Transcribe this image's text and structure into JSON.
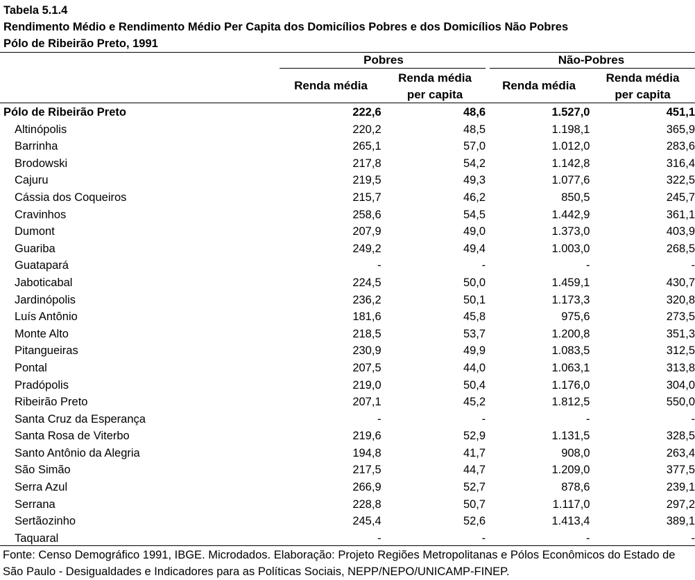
{
  "title": {
    "line1": "Tabela 5.1.4",
    "line2": "Rendimento Médio e Rendimento Médio Per Capita dos Domicílios Pobres e dos Domicílios Não Pobres",
    "line3": "Pólo de Ribeirão Preto, 1991"
  },
  "groups": {
    "pobres": "Pobres",
    "nao_pobres": "Não-Pobres"
  },
  "subheaders": {
    "renda_media": "Renda média",
    "per_capita_l1": "Renda média",
    "per_capita_l2": "per capita"
  },
  "rows": [
    {
      "name": "Pólo de Ribeirão Preto",
      "p_rm": "222,6",
      "p_pc": "48,6",
      "np_rm": "1.527,0",
      "np_pc": "451,1"
    },
    {
      "name": "Altinópolis",
      "p_rm": "220,2",
      "p_pc": "48,5",
      "np_rm": "1.198,1",
      "np_pc": "365,9"
    },
    {
      "name": "Barrinha",
      "p_rm": "265,1",
      "p_pc": "57,0",
      "np_rm": "1.012,0",
      "np_pc": "283,6"
    },
    {
      "name": "Brodowski",
      "p_rm": "217,8",
      "p_pc": "54,2",
      "np_rm": "1.142,8",
      "np_pc": "316,4"
    },
    {
      "name": "Cajuru",
      "p_rm": "219,5",
      "p_pc": "49,3",
      "np_rm": "1.077,6",
      "np_pc": "322,5"
    },
    {
      "name": "Cássia dos Coqueiros",
      "p_rm": "215,7",
      "p_pc": "46,2",
      "np_rm": "850,5",
      "np_pc": "245,7"
    },
    {
      "name": "Cravinhos",
      "p_rm": "258,6",
      "p_pc": "54,5",
      "np_rm": "1.442,9",
      "np_pc": "361,1"
    },
    {
      "name": "Dumont",
      "p_rm": "207,9",
      "p_pc": "49,0",
      "np_rm": "1.373,0",
      "np_pc": "403,9"
    },
    {
      "name": "Guariba",
      "p_rm": "249,2",
      "p_pc": "49,4",
      "np_rm": "1.003,0",
      "np_pc": "268,5"
    },
    {
      "name": "Guatapará",
      "p_rm": "-",
      "p_pc": "-",
      "np_rm": "-",
      "np_pc": "-"
    },
    {
      "name": "Jaboticabal",
      "p_rm": "224,5",
      "p_pc": "50,0",
      "np_rm": "1.459,1",
      "np_pc": "430,7"
    },
    {
      "name": "Jardinópolis",
      "p_rm": "236,2",
      "p_pc": "50,1",
      "np_rm": "1.173,3",
      "np_pc": "320,8"
    },
    {
      "name": "Luís Antônio",
      "p_rm": "181,6",
      "p_pc": "45,8",
      "np_rm": "975,6",
      "np_pc": "273,5"
    },
    {
      "name": "Monte Alto",
      "p_rm": "218,5",
      "p_pc": "53,7",
      "np_rm": "1.200,8",
      "np_pc": "351,3"
    },
    {
      "name": "Pitangueiras",
      "p_rm": "230,9",
      "p_pc": "49,9",
      "np_rm": "1.083,5",
      "np_pc": "312,5"
    },
    {
      "name": "Pontal",
      "p_rm": "207,5",
      "p_pc": "44,0",
      "np_rm": "1.063,1",
      "np_pc": "313,8"
    },
    {
      "name": "Pradópolis",
      "p_rm": "219,0",
      "p_pc": "50,4",
      "np_rm": "1.176,0",
      "np_pc": "304,0"
    },
    {
      "name": "Ribeirão Preto",
      "p_rm": "207,1",
      "p_pc": "45,2",
      "np_rm": "1.812,5",
      "np_pc": "550,0"
    },
    {
      "name": "Santa Cruz da Esperança",
      "p_rm": "-",
      "p_pc": "-",
      "np_rm": "-",
      "np_pc": "-"
    },
    {
      "name": "Santa Rosa de Viterbo",
      "p_rm": "219,6",
      "p_pc": "52,9",
      "np_rm": "1.131,5",
      "np_pc": "328,5"
    },
    {
      "name": "Santo Antônio da Alegria",
      "p_rm": "194,8",
      "p_pc": "41,7",
      "np_rm": "908,0",
      "np_pc": "263,4"
    },
    {
      "name": "São Simão",
      "p_rm": "217,5",
      "p_pc": "44,7",
      "np_rm": "1.209,0",
      "np_pc": "377,5"
    },
    {
      "name": "Serra Azul",
      "p_rm": "266,9",
      "p_pc": "52,7",
      "np_rm": "878,6",
      "np_pc": "239,1"
    },
    {
      "name": "Serrana",
      "p_rm": "228,8",
      "p_pc": "50,7",
      "np_rm": "1.117,0",
      "np_pc": "297,2"
    },
    {
      "name": "Sertãozinho",
      "p_rm": "245,4",
      "p_pc": "52,6",
      "np_rm": "1.413,4",
      "np_pc": "389,1"
    },
    {
      "name": "Taquaral",
      "p_rm": "-",
      "p_pc": "-",
      "np_rm": "-",
      "np_pc": "-"
    }
  ],
  "source": "Fonte: Censo Demográfico 1991, IBGE. Microdados. Elaboração: Projeto Regiões Metropolitanas e Pólos Econômicos do Estado de São Paulo - Desigualdades e Indicadores para as Políticas Sociais, NEPP/NEPO/UNICAMP-FINEP."
}
